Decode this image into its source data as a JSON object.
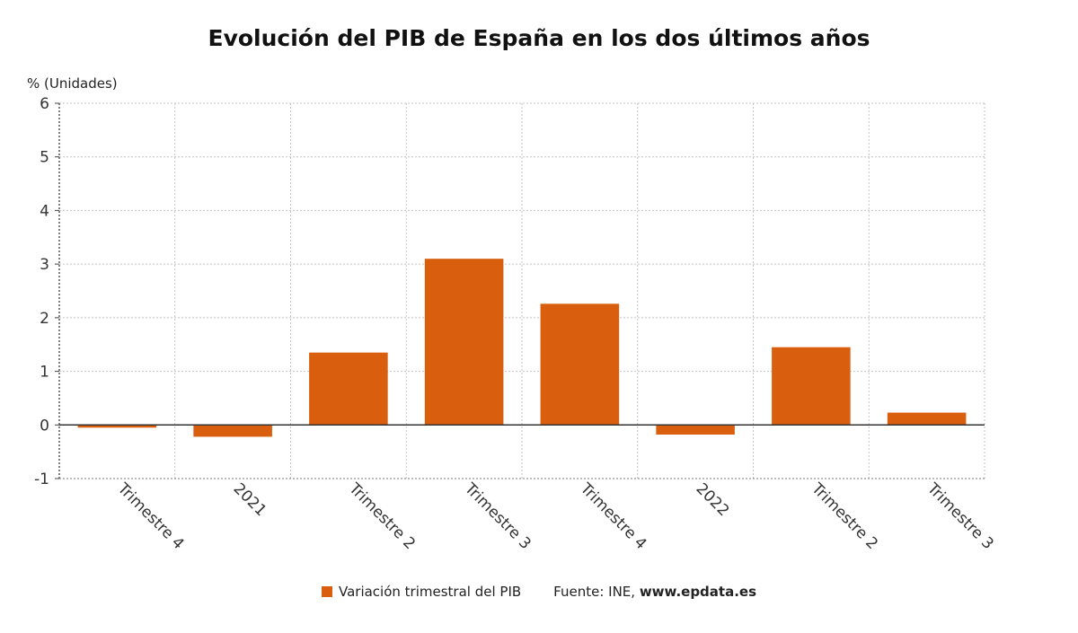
{
  "chart_data": {
    "type": "bar",
    "title": "Evolución del PIB de España en los dos últimos años",
    "y_unit_label": "% (Unidades)",
    "categories": [
      "Trimestre 4",
      "2021",
      "Trimestre 2",
      "Trimestre 3",
      "Trimestre 4",
      "2022",
      "Trimestre 2",
      "Trimestre 3"
    ],
    "series": [
      {
        "name": "Variación trimestral del PIB",
        "color": "#D95F0E",
        "values": [
          -0.05,
          -0.22,
          1.35,
          3.1,
          2.26,
          -0.18,
          1.45,
          0.23
        ]
      }
    ],
    "ylim": [
      -1,
      6
    ],
    "yticks": [
      -1,
      0,
      1,
      2,
      3,
      4,
      5,
      6
    ],
    "grid": true,
    "legend_position": "bottom"
  },
  "source": {
    "prefix": "Fuente: INE,",
    "site": "www.epdata.es"
  }
}
